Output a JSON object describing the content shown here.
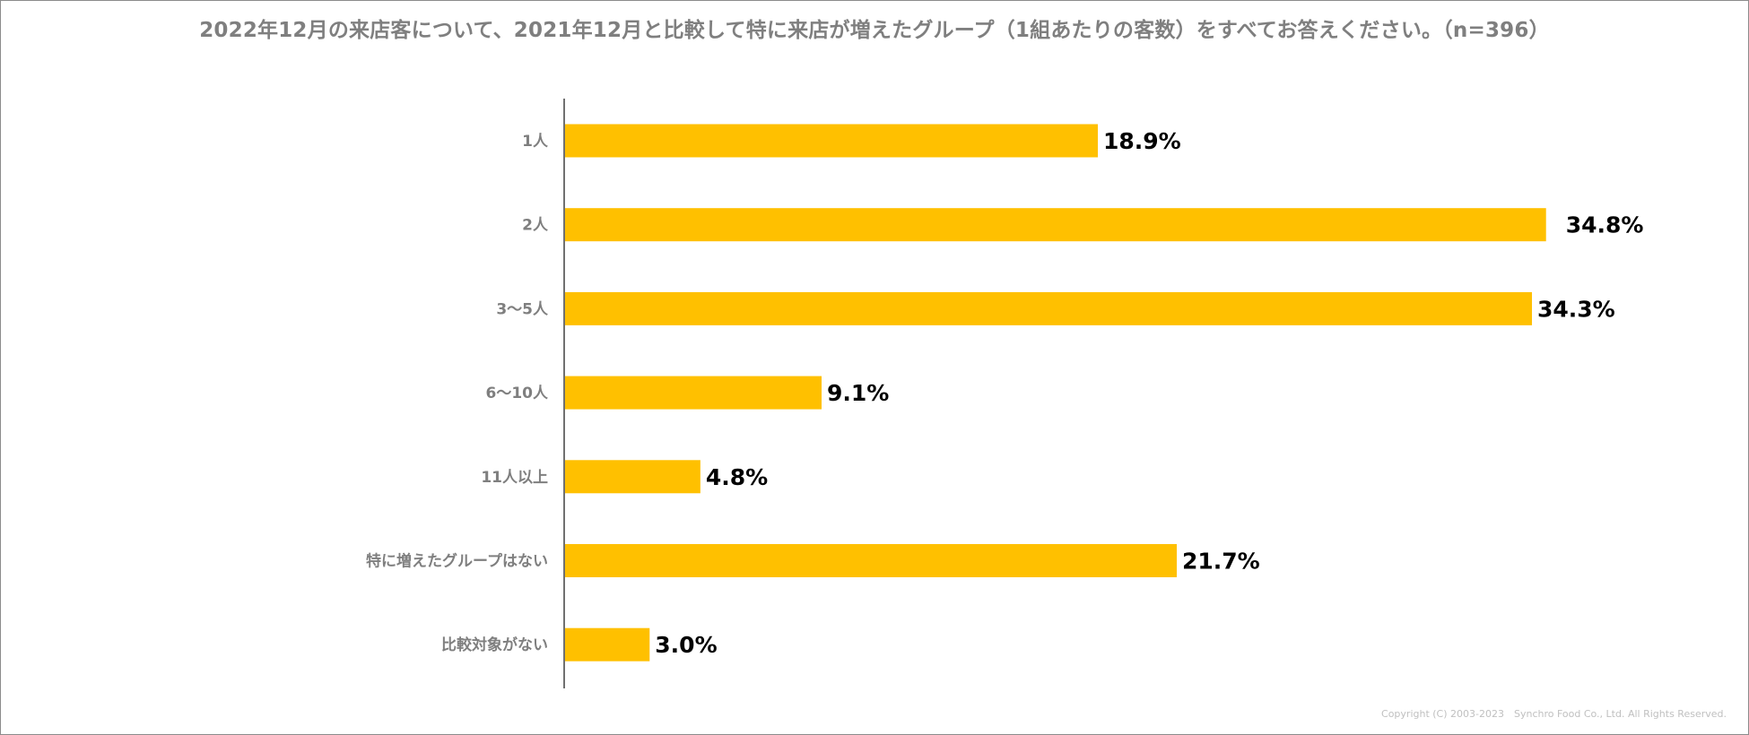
{
  "chart_data": {
    "type": "bar",
    "orientation": "horizontal",
    "title": "2022年12月の来店客について、2021年12月と比較して特に来店が増えたグループ（1組あたりの客数）をすべてお答えください。（n=396）",
    "categories": [
      "1人",
      "2人",
      "3～5人",
      "6～10人",
      "11人以上",
      "特に増えたグループはない",
      "比較対象がない"
    ],
    "values": [
      18.9,
      34.8,
      34.3,
      9.1,
      4.8,
      21.7,
      3.0
    ],
    "value_labels": [
      "18.9%",
      "34.8%",
      "34.3%",
      "9.1%",
      "4.8%",
      "21.7%",
      "3.0%"
    ],
    "unit": "%",
    "xlim": [
      0,
      35
    ],
    "bar_color": "#FFC000",
    "grid": false,
    "xlabel": "",
    "ylabel": ""
  },
  "footer": {
    "copyright": "Copyright (C) 2003-2023　Synchro Food Co., Ltd. All Rights Reserved."
  }
}
